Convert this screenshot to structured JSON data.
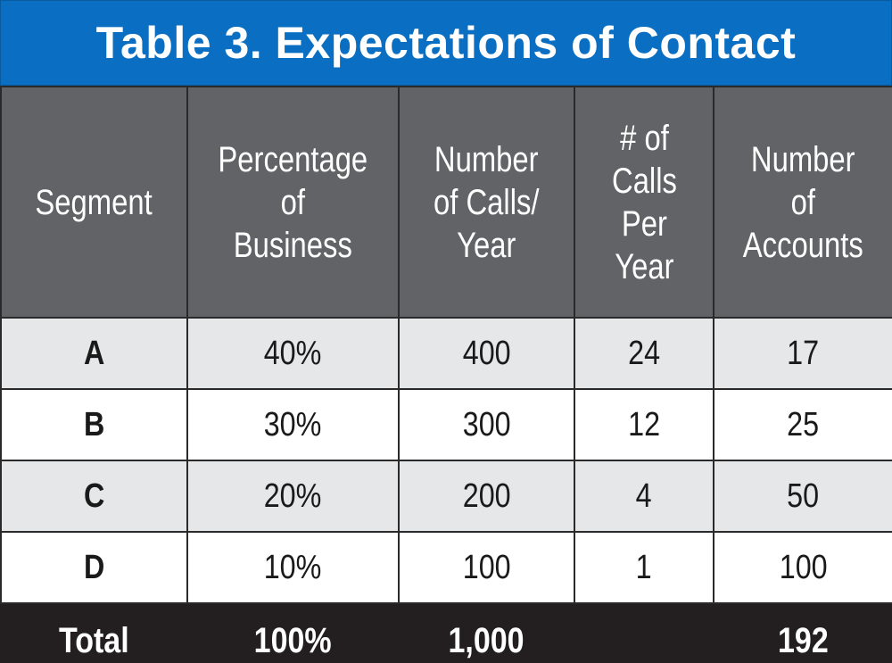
{
  "title": "Table 3. Expectations of Contact",
  "colors": {
    "title_bg": "#0a6fc2",
    "header_bg": "#626366",
    "row_shade": "#e6e7e8",
    "total_bg": "#231f20"
  },
  "headers": [
    "Segment",
    "Percentage\nof\nBusiness",
    "Number\nof Calls/\nYear",
    "# of\nCalls\nPer\nYear",
    "Number\nof\nAccounts"
  ],
  "rows": [
    [
      "A",
      "40%",
      "400",
      "24",
      "17"
    ],
    [
      "B",
      "30%",
      "300",
      "12",
      "25"
    ],
    [
      "C",
      "20%",
      "200",
      "4",
      "50"
    ],
    [
      "D",
      "10%",
      "100",
      "1",
      "100"
    ]
  ],
  "total": [
    "Total",
    "100%",
    "1,000",
    "",
    "192"
  ]
}
